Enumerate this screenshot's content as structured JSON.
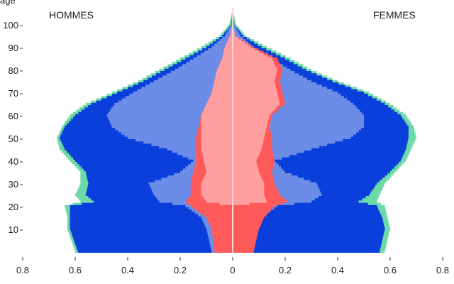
{
  "chart_data": {
    "type": "area",
    "title": "",
    "ylabel": "age",
    "left_label": "HOMMES",
    "right_label": "FEMMES",
    "xlim": [
      -0.8,
      0.8
    ],
    "ylim": [
      0,
      111
    ],
    "x_ticks": [
      -0.8,
      -0.6,
      -0.4,
      -0.2,
      0,
      0.2,
      0.4,
      0.6,
      0.8
    ],
    "x_tick_labels": [
      "0.8",
      "0.6",
      "0.4",
      "0.2",
      "0",
      "0.2",
      "0.4",
      "0.6",
      "0.8"
    ],
    "y_ticks": [
      10,
      20,
      30,
      40,
      50,
      60,
      70,
      80,
      90,
      100
    ],
    "y_tick_labels": [
      "10",
      "20",
      "30",
      "40",
      "50",
      "60",
      "70",
      "80",
      "90",
      "100"
    ],
    "grid": false,
    "colors": {
      "outer": "#6ddba8",
      "second": "#0a3fdb",
      "third": "#6b8de8",
      "fourth": "#ff5a5a",
      "inner": "#ff9e9e",
      "center_line": "#f5d5d5"
    },
    "series": [
      {
        "age": [
          0,
          10,
          15,
          20,
          22,
          25,
          30,
          35,
          40,
          45,
          50,
          55,
          60,
          65,
          70,
          75,
          80,
          85,
          90,
          95,
          100,
          105
        ],
        "left": [
          0.6,
          0.63,
          0.63,
          0.64,
          0.58,
          0.6,
          0.58,
          0.58,
          0.62,
          0.66,
          0.67,
          0.65,
          0.62,
          0.56,
          0.46,
          0.36,
          0.28,
          0.2,
          0.12,
          0.05,
          0.013,
          0.003
        ],
        "right": [
          0.58,
          0.6,
          0.59,
          0.58,
          0.55,
          0.56,
          0.58,
          0.62,
          0.66,
          0.68,
          0.7,
          0.69,
          0.66,
          0.6,
          0.52,
          0.4,
          0.3,
          0.22,
          0.13,
          0.05,
          0.013,
          0.003
        ]
      },
      {
        "age": [
          0,
          10,
          15,
          20,
          22,
          25,
          30,
          35,
          40,
          45,
          50,
          55,
          60,
          65,
          70,
          75,
          80,
          85,
          90,
          95,
          100,
          105
        ],
        "left": [
          0.59,
          0.62,
          0.62,
          0.62,
          0.53,
          0.56,
          0.55,
          0.56,
          0.6,
          0.64,
          0.66,
          0.64,
          0.6,
          0.54,
          0.44,
          0.34,
          0.26,
          0.18,
          0.1,
          0.04,
          0.006,
          0.001
        ],
        "right": [
          0.56,
          0.58,
          0.57,
          0.55,
          0.48,
          0.52,
          0.55,
          0.6,
          0.64,
          0.66,
          0.67,
          0.67,
          0.64,
          0.58,
          0.5,
          0.38,
          0.28,
          0.2,
          0.11,
          0.04,
          0.006,
          0.001
        ]
      },
      {
        "age": [
          0,
          10,
          15,
          20,
          22,
          25,
          30,
          35,
          40,
          45,
          50,
          55,
          60,
          65,
          70,
          75,
          80,
          85,
          90,
          95,
          100,
          105
        ],
        "left": [
          0.08,
          0.1,
          0.12,
          0.18,
          0.28,
          0.3,
          0.32,
          0.2,
          0.15,
          0.25,
          0.4,
          0.46,
          0.48,
          0.45,
          0.38,
          0.3,
          0.22,
          0.15,
          0.08,
          0.03,
          0.005,
          0.001
        ],
        "right": [
          0.08,
          0.09,
          0.11,
          0.17,
          0.3,
          0.34,
          0.32,
          0.2,
          0.16,
          0.3,
          0.45,
          0.5,
          0.5,
          0.46,
          0.4,
          0.3,
          0.22,
          0.15,
          0.08,
          0.03,
          0.005,
          0.001
        ]
      },
      {
        "age": [
          0,
          10,
          15,
          20,
          22,
          25,
          30,
          35,
          40,
          45,
          50,
          55,
          60,
          65,
          70,
          75,
          80,
          85,
          90,
          95,
          100,
          105
        ],
        "left": [
          0.07,
          0.08,
          0.1,
          0.16,
          0.18,
          0.16,
          0.16,
          0.15,
          0.14,
          0.14,
          0.14,
          0.13,
          0.12,
          0.1,
          0.08,
          0.07,
          0.06,
          0.04,
          0.03,
          0.01,
          0.002,
          0.0
        ],
        "right": [
          0.08,
          0.1,
          0.12,
          0.16,
          0.21,
          0.18,
          0.16,
          0.15,
          0.16,
          0.15,
          0.15,
          0.14,
          0.15,
          0.2,
          0.19,
          0.18,
          0.19,
          0.17,
          0.08,
          0.01,
          0.002,
          0.0
        ]
      },
      {
        "age": [
          0,
          10,
          15,
          20,
          22,
          25,
          30,
          35,
          40,
          45,
          50,
          55,
          60,
          65,
          70,
          75,
          80,
          85,
          90,
          95,
          100,
          105
        ],
        "left": [
          0.0,
          0.0,
          0.0,
          0.0,
          0.1,
          0.12,
          0.12,
          0.1,
          0.11,
          0.12,
          0.12,
          0.12,
          0.12,
          0.1,
          0.08,
          0.07,
          0.06,
          0.04,
          0.03,
          0.01,
          0.002,
          0.0
        ],
        "right": [
          0.0,
          0.0,
          0.0,
          0.0,
          0.13,
          0.12,
          0.12,
          0.1,
          0.09,
          0.11,
          0.12,
          0.13,
          0.14,
          0.18,
          0.17,
          0.16,
          0.17,
          0.15,
          0.07,
          0.01,
          0.002,
          0.0
        ]
      }
    ]
  }
}
